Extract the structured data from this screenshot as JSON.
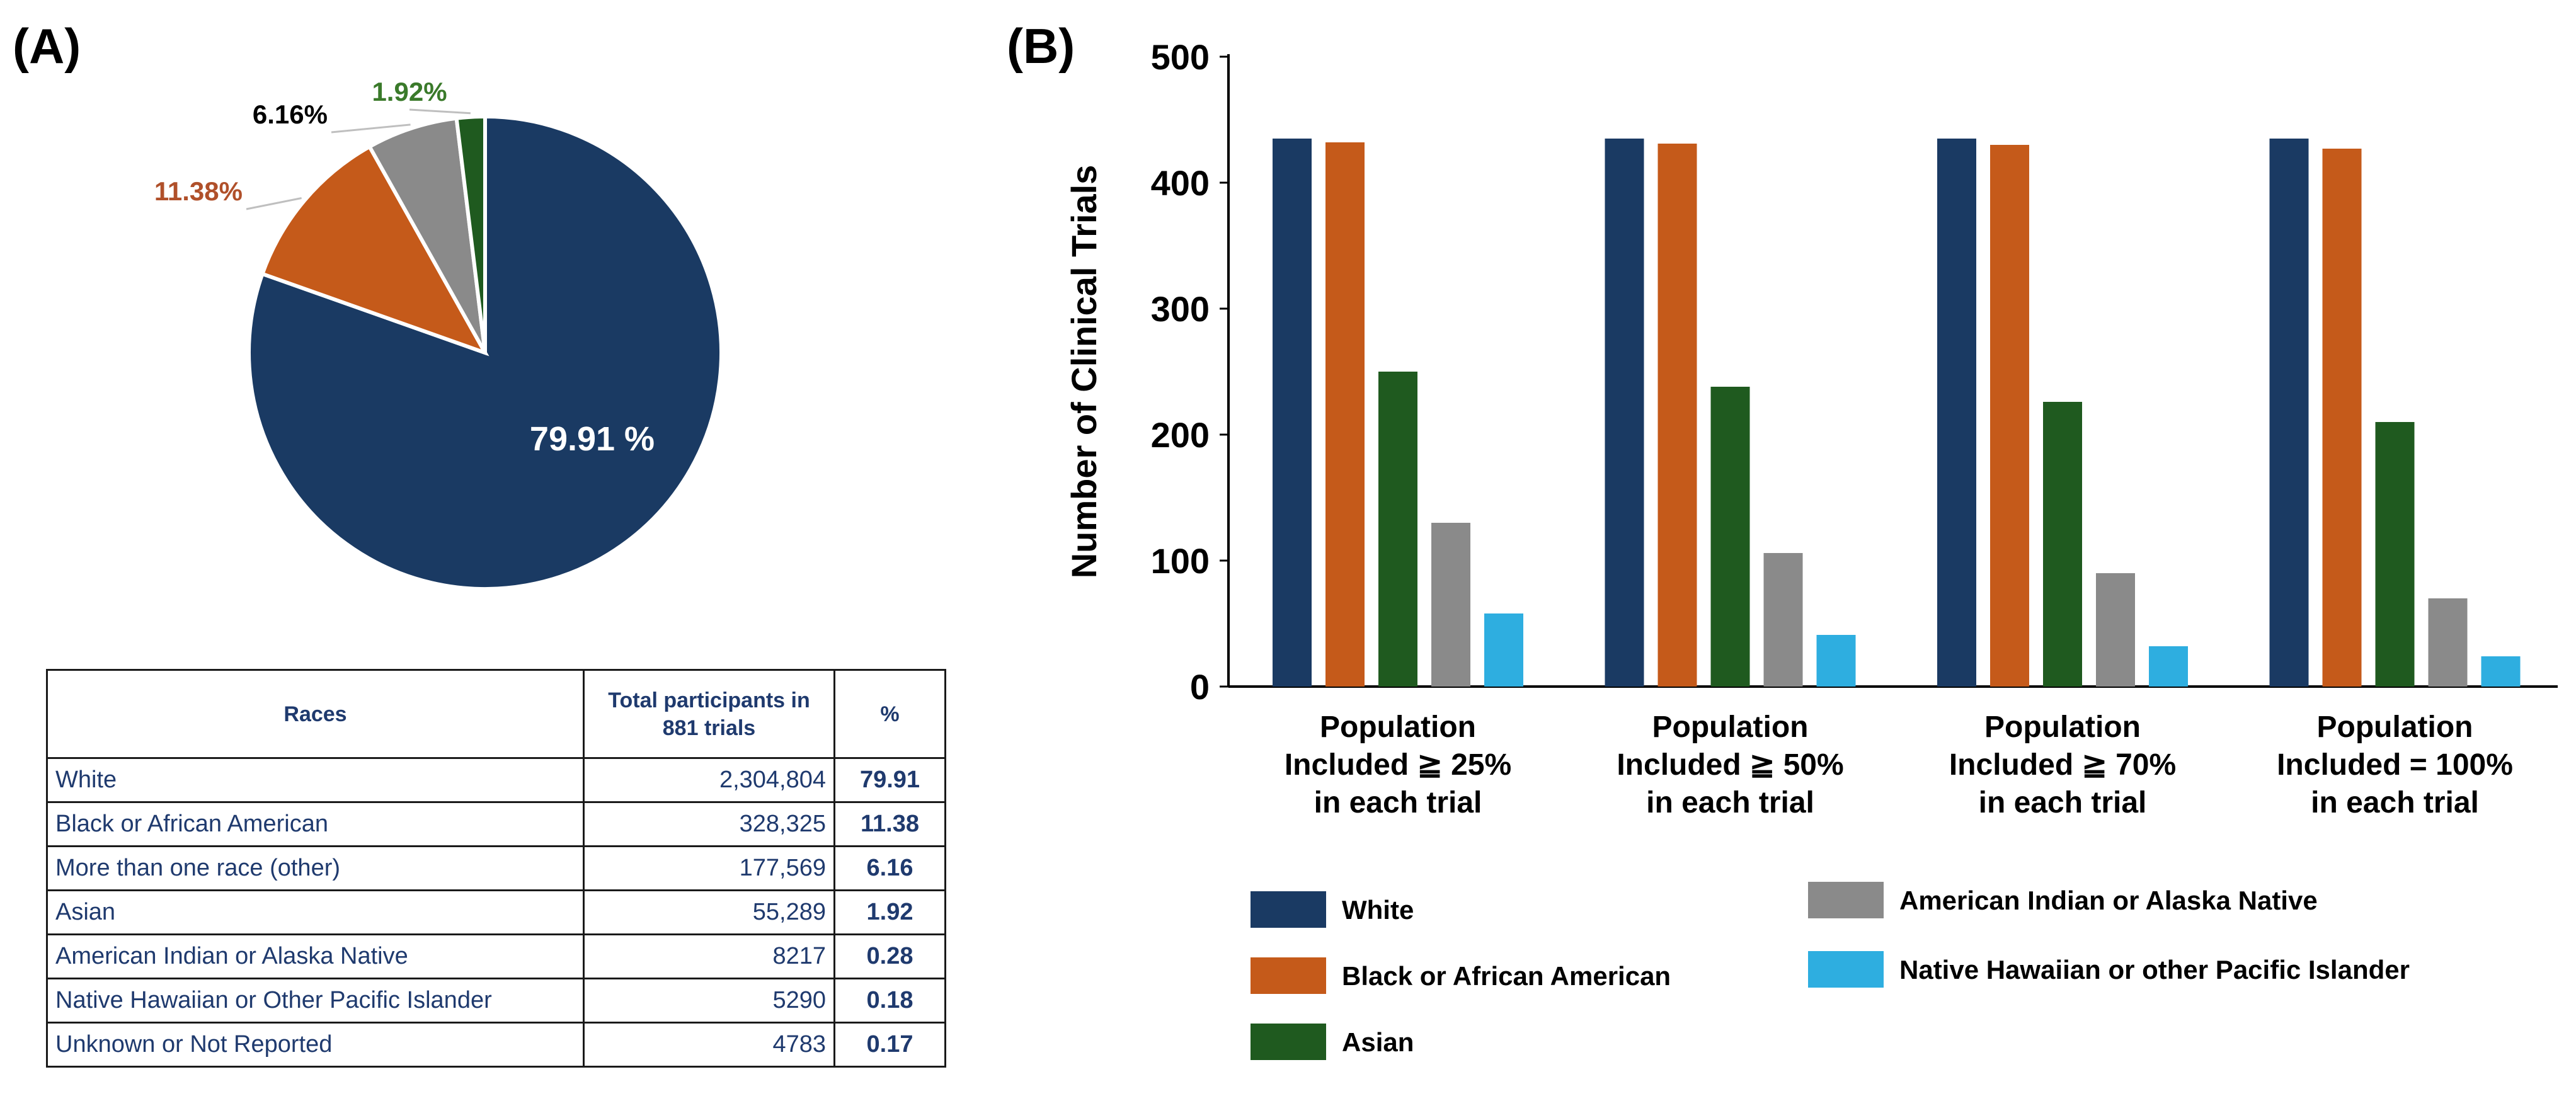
{
  "panel_a_label": "(A)",
  "panel_b_label": "(B)",
  "chart_data": [
    {
      "type": "pie",
      "slices": [
        {
          "name": "White",
          "value": 79.91,
          "label": "79.91 %",
          "color": "#1a3a63",
          "label_color": "#ffffff"
        },
        {
          "name": "Black or African American",
          "value": 11.38,
          "label": "11.38%",
          "color": "#c55a1a",
          "label_color": "#b0502a"
        },
        {
          "name": "More than one race (other)",
          "value": 6.16,
          "label": "6.16%",
          "color": "#8a8a8a",
          "label_color": "#000000"
        },
        {
          "name": "Asian",
          "value": 1.92,
          "label": "1.92%",
          "color": "#1f5a1f",
          "label_color": "#3a7a2a"
        }
      ]
    },
    {
      "type": "bar",
      "ylabel": "Number of Clinical Trials",
      "ylim": [
        0,
        500
      ],
      "yticks": [
        0,
        100,
        200,
        300,
        400,
        500
      ],
      "categories": [
        [
          "Population",
          "Included ≧ 25%",
          "in each trial"
        ],
        [
          "Population",
          "Included ≧ 50%",
          "in each trial"
        ],
        [
          "Population",
          "Included ≧ 70%",
          "in each trial"
        ],
        [
          "Population",
          "Included = 100%",
          "in each trial"
        ]
      ],
      "series": [
        {
          "name": "White",
          "color": "#1a3a63",
          "values": [
            435,
            435,
            435,
            435
          ]
        },
        {
          "name": "Black or African American",
          "color": "#c55a1a",
          "values": [
            432,
            431,
            430,
            427
          ]
        },
        {
          "name": "Asian",
          "color": "#1f5a1f",
          "values": [
            250,
            238,
            226,
            210
          ]
        },
        {
          "name": "American Indian or Alaska Native",
          "color": "#8a8a8a",
          "values": [
            130,
            106,
            90,
            70
          ]
        },
        {
          "name": "Native Hawaiian or other Pacific Islander",
          "color": "#2eaee0",
          "values": [
            58,
            41,
            32,
            24
          ]
        }
      ]
    }
  ],
  "table": {
    "headers": [
      "Races",
      "Total participants in 881 trials",
      "%"
    ],
    "rows": [
      {
        "race": "White",
        "total": "2,304,804",
        "pct": "79.91"
      },
      {
        "race": "Black or African American",
        "total": "328,325",
        "pct": "11.38"
      },
      {
        "race": "More than one race (other)",
        "total": "177,569",
        "pct": "6.16"
      },
      {
        "race": "Asian",
        "total": "55,289",
        "pct": "1.92"
      },
      {
        "race": "American Indian or Alaska Native",
        "total": "8217",
        "pct": "0.28"
      },
      {
        "race": "Native Hawaiian or Other Pacific Islander",
        "total": "5290",
        "pct": "0.18"
      },
      {
        "race": "Unknown or Not Reported",
        "total": "4783",
        "pct": "0.17"
      }
    ]
  }
}
